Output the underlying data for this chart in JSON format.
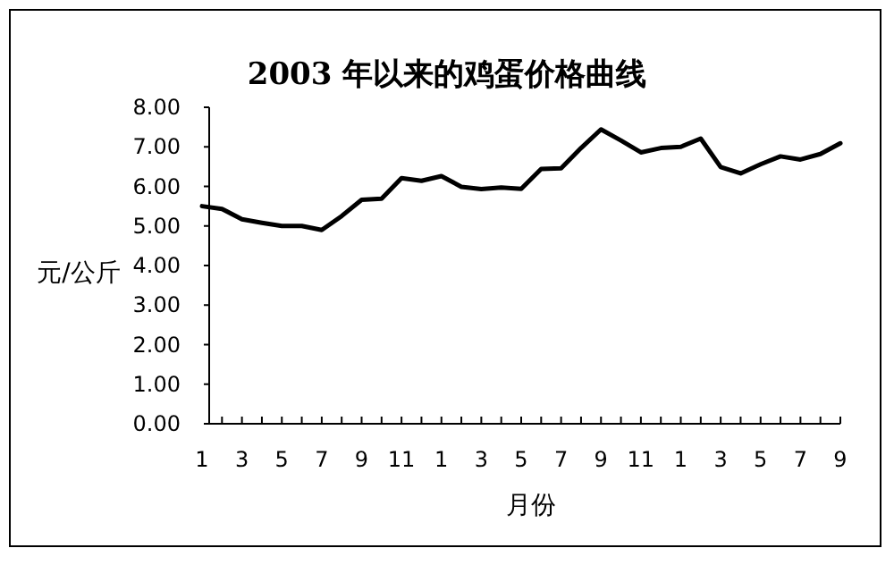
{
  "chart_data": {
    "type": "line",
    "title": "2003 年以来的鸡蛋价格曲线",
    "xlabel": "月份",
    "ylabel": "元/公斤",
    "categories": [
      "1",
      null,
      "3",
      null,
      "5",
      null,
      "7",
      null,
      "9",
      null,
      "11",
      null,
      "1",
      null,
      "3",
      null,
      "5",
      null,
      "7",
      null,
      "9",
      null,
      "11",
      null,
      "1",
      null,
      "3",
      null,
      "5",
      null,
      "7",
      null,
      "9"
    ],
    "series": [
      {
        "color": "#000000",
        "values": [
          5.5,
          5.43,
          5.17,
          5.08,
          5.0,
          5.0,
          4.9,
          5.25,
          5.66,
          5.69,
          6.21,
          6.14,
          6.26,
          5.99,
          5.93,
          5.97,
          5.94,
          6.44,
          6.46,
          6.97,
          7.44,
          7.16,
          6.86,
          6.97,
          7.0,
          7.21,
          6.49,
          6.33,
          6.56,
          6.76,
          6.68,
          6.82,
          7.09
        ]
      }
    ],
    "ylim": [
      0,
      8
    ],
    "yticks": [
      {
        "value": 0,
        "label": "0.00"
      },
      {
        "value": 1,
        "label": "1.00"
      },
      {
        "value": 2,
        "label": "2.00"
      },
      {
        "value": 3,
        "label": "3.00"
      },
      {
        "value": 4,
        "label": "4.00"
      },
      {
        "value": 5,
        "label": "5.00"
      },
      {
        "value": 6,
        "label": "6.00"
      },
      {
        "value": 7,
        "label": "7.00"
      },
      {
        "value": 8,
        "label": "8.00"
      }
    ],
    "grid": false,
    "marker": "none",
    "line_style": "solid"
  }
}
